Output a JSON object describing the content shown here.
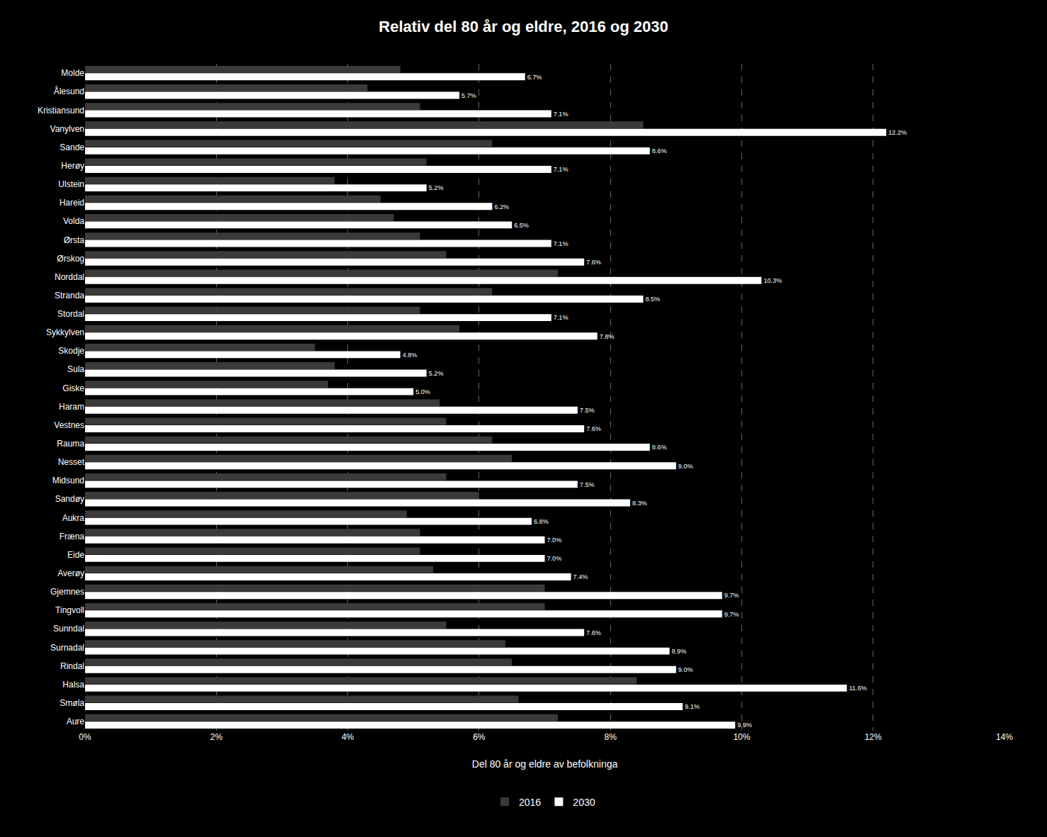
{
  "chart_data": {
    "type": "bar",
    "orientation": "horizontal",
    "title": "Relativ del 80 år og eldre, 2016 og 2030",
    "x_label": "Del 80 år og eldre av befolkninga",
    "categories": [
      "Molde",
      "Ålesund",
      "Kristiansund",
      "Vanylven",
      "Sande",
      "Herøy",
      "Ulstein",
      "Hareid",
      "Volda",
      "Ørsta",
      "Ørskog",
      "Norddal",
      "Stranda",
      "Stordal",
      "Sykkylven",
      "Skodje",
      "Sula",
      "Giske",
      "Haram",
      "Vestnes",
      "Rauma",
      "Nesset",
      "Midsund",
      "Sandøy",
      "Aukra",
      "Fræna",
      "Eide",
      "Averøy",
      "Gjemnes",
      "Tingvoll",
      "Sunndal",
      "Surnadal",
      "Rindal",
      "Halsa",
      "Smøla",
      "Aure"
    ],
    "series": [
      {
        "name": "2016",
        "color": "#3a3a3a",
        "values": [
          4.8,
          4.3,
          5.1,
          8.5,
          6.2,
          5.2,
          3.8,
          4.5,
          4.7,
          5.1,
          5.5,
          7.2,
          6.2,
          5.1,
          5.7,
          3.5,
          3.8,
          3.7,
          5.4,
          5.5,
          6.2,
          6.5,
          5.5,
          6.0,
          4.9,
          5.1,
          5.1,
          5.3,
          7.0,
          7.0,
          5.5,
          6.4,
          6.5,
          8.4,
          6.6,
          7.2
        ]
      },
      {
        "name": "2030",
        "color": "#ffffff",
        "data_labels": true,
        "values": [
          6.7,
          5.7,
          7.1,
          12.2,
          8.6,
          7.1,
          5.2,
          6.2,
          6.5,
          7.1,
          7.6,
          10.3,
          8.5,
          7.1,
          7.8,
          4.8,
          5.2,
          5.0,
          7.5,
          7.6,
          8.6,
          9.0,
          7.5,
          8.3,
          6.8,
          7.0,
          7.0,
          7.4,
          9.7,
          9.7,
          7.6,
          8.9,
          9.0,
          11.6,
          9.1,
          9.9
        ],
        "value_labels": [
          "6.7%",
          "5.7%",
          "7.1%",
          "12.2%",
          "8.6%",
          "7.1%",
          "5.2%",
          "6.2%",
          "6.5%",
          "7.1%",
          "7.6%",
          "10.3%",
          "8.5%",
          "7.1%",
          "7.8%",
          "4.8%",
          "5.2%",
          "5.0%",
          "7.5%",
          "7.6%",
          "8.6%",
          "9.0%",
          "7.5%",
          "8.3%",
          "6.8%",
          "7.0%",
          "7.0%",
          "7.4%",
          "9.7%",
          "9.7%",
          "7.6%",
          "8.9%",
          "9.0%",
          "11.6%",
          "9.1%",
          "9.9%"
        ]
      }
    ],
    "xlim": [
      0,
      14
    ],
    "xticks": [
      {
        "value": 0,
        "label": "0%"
      },
      {
        "value": 2,
        "label": "2%"
      },
      {
        "value": 4,
        "label": "4%"
      },
      {
        "value": 6,
        "label": "6%"
      },
      {
        "value": 8,
        "label": "8%"
      },
      {
        "value": 10,
        "label": "10%"
      },
      {
        "value": 12,
        "label": "12%"
      },
      {
        "value": 14,
        "label": "14%"
      }
    ],
    "grid": true,
    "legend": "bottom"
  }
}
